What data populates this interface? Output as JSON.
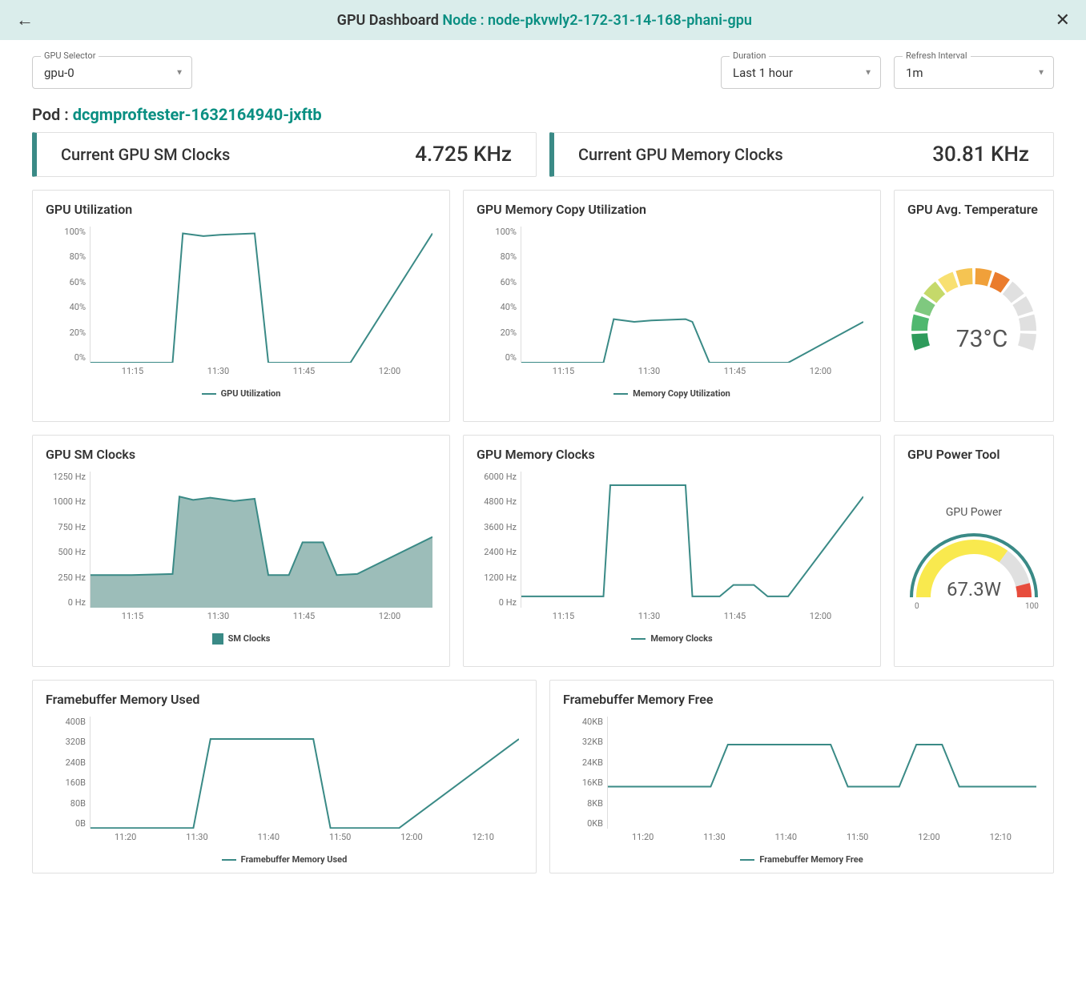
{
  "header": {
    "title_prefix": "GPU Dashboard ",
    "node_label": "Node : ",
    "node_value": "node-pkvwly2-172-31-14-168-phani-gpu"
  },
  "controls": {
    "gpu_selector": {
      "label": "GPU Selector",
      "value": "gpu-0"
    },
    "duration": {
      "label": "Duration",
      "value": "Last 1 hour"
    },
    "refresh": {
      "label": "Refresh Interval",
      "value": "1m"
    }
  },
  "pod": {
    "label": "Pod : ",
    "value": "dcgmproftester-1632164940-jxftb"
  },
  "kpi": {
    "sm_clocks": {
      "title": "Current GPU SM Clocks",
      "value": "4.725 KHz"
    },
    "mem_clocks": {
      "title": "Current GPU Memory Clocks",
      "value": "30.81 KHz"
    }
  },
  "colors": {
    "line": "#3a8a86",
    "area_fill": "#9cbdb9",
    "grid": "#eeeeee",
    "axis_text": "#777777"
  },
  "charts": {
    "gpu_util": {
      "title": "GPU Utilization",
      "type": "line",
      "legend": "GPU Utilization",
      "y_ticks": [
        "100%",
        "80%",
        "60%",
        "40%",
        "20%",
        "0%"
      ],
      "x_ticks": [
        "11:15",
        "11:30",
        "11:45",
        "12:00"
      ],
      "ylim": [
        0,
        100
      ],
      "points": [
        [
          0,
          0
        ],
        [
          10,
          0
        ],
        [
          24,
          0
        ],
        [
          27,
          95
        ],
        [
          33,
          93
        ],
        [
          38,
          94
        ],
        [
          48,
          95
        ],
        [
          52,
          0
        ],
        [
          70,
          0
        ],
        [
          76,
          0
        ],
        [
          100,
          95
        ]
      ],
      "height": 170
    },
    "mem_copy": {
      "title": "GPU Memory Copy Utilization",
      "type": "line",
      "legend": "Memory Copy Utilization",
      "y_ticks": [
        "100%",
        "80%",
        "60%",
        "40%",
        "20%",
        "0%"
      ],
      "x_ticks": [
        "11:15",
        "11:30",
        "11:45",
        "12:00"
      ],
      "ylim": [
        0,
        100
      ],
      "points": [
        [
          0,
          0
        ],
        [
          10,
          0
        ],
        [
          24,
          0
        ],
        [
          27,
          32
        ],
        [
          33,
          30
        ],
        [
          38,
          31
        ],
        [
          48,
          32
        ],
        [
          50,
          30
        ],
        [
          55,
          0
        ],
        [
          70,
          0
        ],
        [
          78,
          0
        ],
        [
          100,
          30
        ]
      ],
      "height": 170
    },
    "sm_clocks": {
      "title": "GPU SM Clocks",
      "type": "area",
      "legend": "SM Clocks",
      "y_ticks": [
        "1250 Hz",
        "1000 Hz",
        "750 Hz",
        "500 Hz",
        "250 Hz",
        "0 Hz"
      ],
      "x_ticks": [
        "11:15",
        "11:30",
        "11:45",
        "12:00"
      ],
      "ylim": [
        0,
        1250
      ],
      "points": [
        [
          0,
          300
        ],
        [
          12,
          300
        ],
        [
          24,
          310
        ],
        [
          26,
          1020
        ],
        [
          30,
          990
        ],
        [
          35,
          1010
        ],
        [
          42,
          980
        ],
        [
          48,
          1000
        ],
        [
          52,
          300
        ],
        [
          58,
          300
        ],
        [
          62,
          600
        ],
        [
          68,
          600
        ],
        [
          72,
          300
        ],
        [
          78,
          310
        ],
        [
          100,
          650
        ]
      ],
      "height": 170
    },
    "mem_clocks": {
      "title": "GPU Memory Clocks",
      "type": "line",
      "legend": "Memory Clocks",
      "y_ticks": [
        "6000 Hz",
        "4800 Hz",
        "3600 Hz",
        "2400 Hz",
        "1200 Hz",
        "0 Hz"
      ],
      "x_ticks": [
        "11:15",
        "11:30",
        "11:45",
        "12:00"
      ],
      "ylim": [
        0,
        6000
      ],
      "points": [
        [
          0,
          500
        ],
        [
          10,
          500
        ],
        [
          24,
          500
        ],
        [
          26,
          5400
        ],
        [
          48,
          5400
        ],
        [
          50,
          500
        ],
        [
          58,
          500
        ],
        [
          62,
          1000
        ],
        [
          68,
          1000
        ],
        [
          72,
          500
        ],
        [
          78,
          500
        ],
        [
          100,
          4900
        ]
      ],
      "height": 170
    },
    "fb_used": {
      "title": "Framebuffer Memory Used",
      "type": "line",
      "legend": "Framebuffer Memory Used",
      "y_ticks": [
        "400B",
        "320B",
        "240B",
        "160B",
        "80B",
        "0B"
      ],
      "x_ticks": [
        "11:20",
        "11:30",
        "11:40",
        "11:50",
        "12:00",
        "12:10"
      ],
      "ylim": [
        0,
        400
      ],
      "points": [
        [
          0,
          2
        ],
        [
          8,
          2
        ],
        [
          24,
          2
        ],
        [
          28,
          320
        ],
        [
          52,
          320
        ],
        [
          56,
          2
        ],
        [
          72,
          2
        ],
        [
          100,
          320
        ]
      ],
      "height": 140
    },
    "fb_free": {
      "title": "Framebuffer Memory Free",
      "type": "line",
      "legend": "Framebuffer Memory Free",
      "y_ticks": [
        "40KB",
        "32KB",
        "24KB",
        "16KB",
        "8KB",
        "0KB"
      ],
      "x_ticks": [
        "11:20",
        "11:30",
        "11:40",
        "11:50",
        "12:00",
        "12:10"
      ],
      "ylim": [
        0,
        40
      ],
      "points": [
        [
          0,
          15
        ],
        [
          8,
          15
        ],
        [
          24,
          15
        ],
        [
          28,
          30
        ],
        [
          52,
          30
        ],
        [
          56,
          15
        ],
        [
          68,
          15
        ],
        [
          72,
          30
        ],
        [
          78,
          30
        ],
        [
          82,
          15
        ],
        [
          100,
          15
        ]
      ],
      "height": 140
    }
  },
  "gauges": {
    "temp": {
      "title": "GPU Avg. Temperature",
      "value_text": "73°C",
      "value": 73,
      "min": 0,
      "max": 100,
      "segments": [
        {
          "color": "#2e9b5b"
        },
        {
          "color": "#4fb86f"
        },
        {
          "color": "#7fc97f"
        },
        {
          "color": "#c5d96a"
        },
        {
          "color": "#f8e071"
        },
        {
          "color": "#f5c452"
        },
        {
          "color": "#f0a03a"
        },
        {
          "color": "#ea7c2d"
        },
        {
          "color": "#e0e0e0"
        },
        {
          "color": "#e0e0e0"
        },
        {
          "color": "#e0e0e0"
        },
        {
          "color": "#e0e0e0"
        }
      ]
    },
    "power": {
      "title": "GPU Power Tool",
      "subtitle": "GPU Power",
      "value_text": "67.3W",
      "value": 67.3,
      "min": 0,
      "min_label": "0",
      "max": 100,
      "max_label": "100",
      "outer_color": "#3a8a86",
      "zones": [
        {
          "from": 0,
          "to": 70,
          "color": "#f9e94e"
        },
        {
          "from": 70,
          "to": 92,
          "color": "#e0e0e0"
        },
        {
          "from": 92,
          "to": 100,
          "color": "#e74c3c"
        }
      ]
    }
  }
}
